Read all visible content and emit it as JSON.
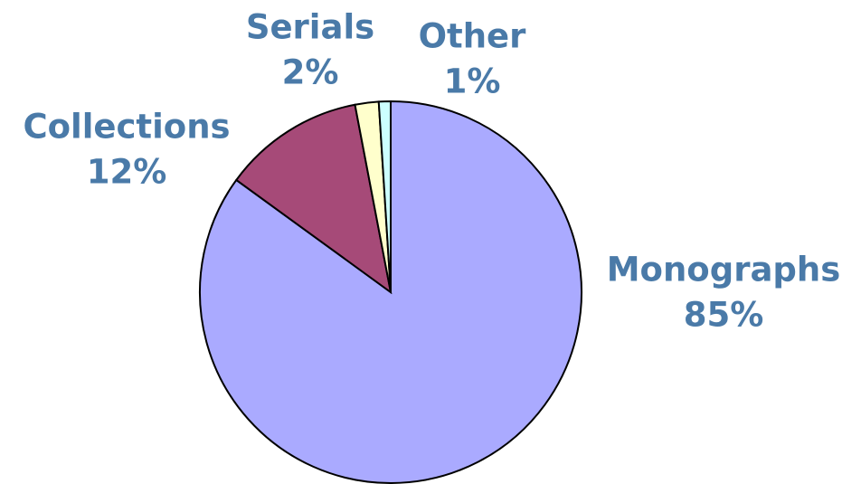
{
  "chart_data": {
    "type": "pie",
    "categories": [
      "Monographs",
      "Collections",
      "Serials",
      "Other"
    ],
    "values": [
      85,
      12,
      2,
      1
    ],
    "value_labels": [
      "85%",
      "12%",
      "2%",
      "1%"
    ],
    "colors": [
      "#aaaaff",
      "#a64a78",
      "#ffffcc",
      "#ccffff"
    ]
  }
}
